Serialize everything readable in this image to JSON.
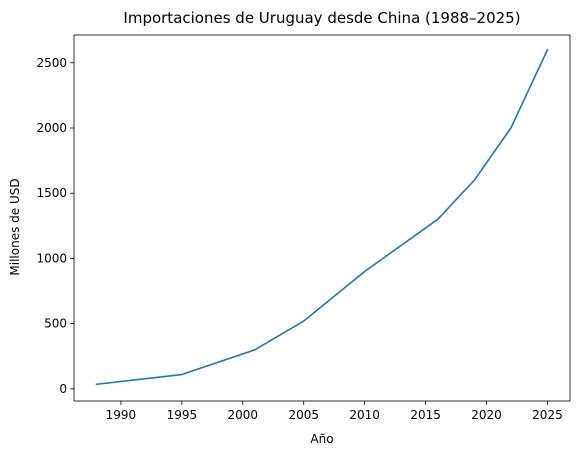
{
  "chart_data": {
    "type": "line",
    "title": "Importaciones de Uruguay desde China (1988–2025)",
    "xlabel": "Año",
    "ylabel": "Millones de USD",
    "xlim": [
      1986.15,
      2026.85
    ],
    "ylim": [
      -93,
      2713
    ],
    "xticks": [
      1990,
      1995,
      2000,
      2005,
      2010,
      2015,
      2020,
      2025
    ],
    "yticks": [
      0,
      500,
      1000,
      1500,
      2000,
      2500
    ],
    "grid": false,
    "line_color": "#1f77b4",
    "series": [
      {
        "x": [
          1988,
          1995,
          2001,
          2005,
          2010,
          2016,
          2019,
          2022,
          2025
        ],
        "values": [
          35,
          110,
          300,
          520,
          900,
          1300,
          1600,
          2000,
          2600
        ]
      }
    ]
  }
}
